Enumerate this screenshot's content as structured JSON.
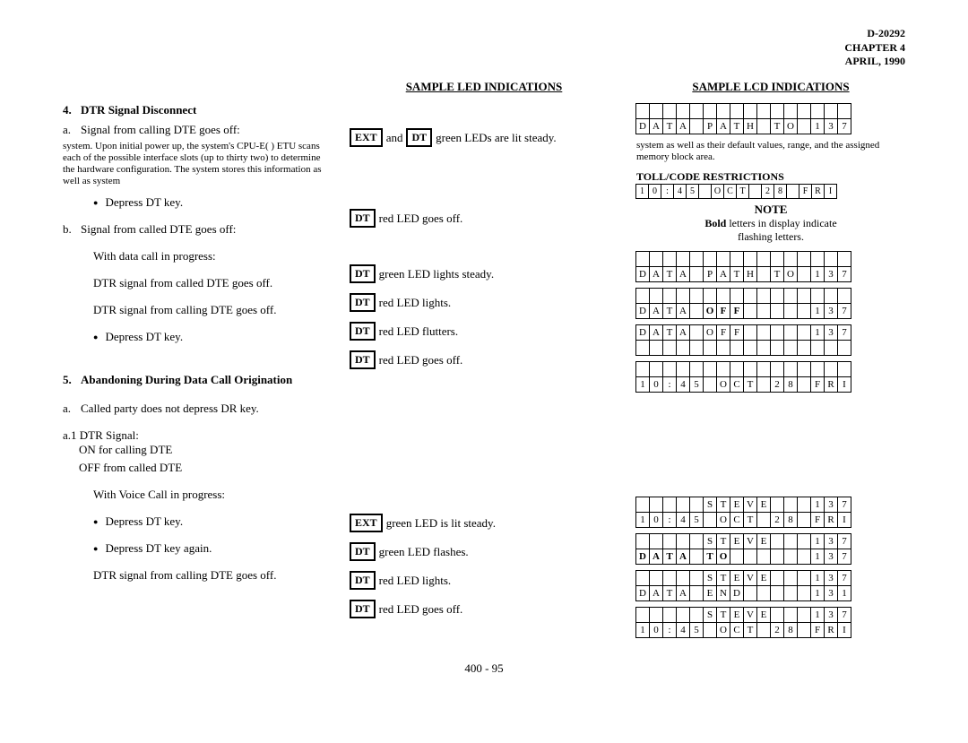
{
  "header": {
    "docnum": "D-20292",
    "chapter": "CHAPTER 4",
    "date": "APRIL, 1990"
  },
  "col_headings": {
    "led": "SAMPLE LED INDICATIONS",
    "lcd": "SAMPLE LCD INDICATIONS"
  },
  "sec4": {
    "num": "4.",
    "title": "DTR Signal Disconnect",
    "a": "Signal from calling DTE goes off:",
    "a_led_1": "EXT",
    "a_led_2": "and",
    "a_led_3": "DT",
    "a_led_4": "green LEDs are lit steady.",
    "garbled1": "system. Upon initial power up, the system's CPU-E( ) ETU scans each of the possible interface slots (up to thirty two) to determine the hardware configuration. The system stores this information as well as system",
    "bullet1": "Depress DT key.",
    "b1_box": "DT",
    "b1_text": "red LED goes off.",
    "b": "Signal from called DTE goes off:",
    "sub1": "With data call in progress:",
    "s1_box": "DT",
    "s1_text": "green LED lights steady.",
    "sub2": "DTR signal from called DTE goes off.",
    "s2_box": "DT",
    "s2_text": "red LED lights.",
    "sub3": "DTR signal from calling DTE goes off.",
    "s3_box": "DT",
    "s3_text": "red LED flutters.",
    "bullet2": "Depress DT key.",
    "b2_box": "DT",
    "b2_text": "red LED goes off."
  },
  "sec5": {
    "num": "5.",
    "title": "Abandoning During Data Call Origination",
    "a": "Called party does not depress DR key.",
    "a1": "a.1 DTR Signal:",
    "a1_l1": "ON for calling DTE",
    "a1_l2": "OFF from called DTE",
    "sub1": "With Voice Call in progress:",
    "s1_box": "EXT",
    "s1_text": "green LED is lit steady.",
    "bullet1": "Depress DT key.",
    "b1_box": "DT",
    "b1_text": "green LED flashes.",
    "bullet2": "Depress DT key again.",
    "b2_box": "DT",
    "b2_text": "red LED lights.",
    "sub2": "DTR signal from calling DTE goes off.",
    "s2_box": "DT",
    "s2_text": "red LED goes off."
  },
  "right": {
    "garbled1": "system as well as their default values, range, and the assigned memory block area.",
    "toll": "TOLL/CODE RESTRICTIONS",
    "note_head": "NOTE",
    "note_body1": "Bold letters in display indicate",
    "note_body2": "flashing letters."
  },
  "lcds": {
    "top": [
      [
        "",
        "",
        "",
        "",
        "",
        "",
        "",
        "",
        "",
        "",
        "",
        "",
        "",
        "",
        "",
        ""
      ],
      [
        "D",
        "A",
        "T",
        "A",
        "",
        "P",
        "A",
        "T",
        "H",
        "",
        "T",
        "O",
        "",
        "1",
        "3",
        "7"
      ]
    ],
    "toll_float": [
      "1",
      "0",
      ":",
      "4",
      "5",
      "",
      "O",
      "C",
      "T",
      "",
      "2",
      "8",
      "",
      "F",
      "R",
      "I"
    ],
    "n1": [
      [
        "",
        "",
        "",
        "",
        "",
        "",
        "",
        "",
        "",
        "",
        "",
        "",
        "",
        "",
        "",
        ""
      ],
      [
        "D",
        "A",
        "T",
        "A",
        "",
        "P",
        "A",
        "T",
        "H",
        "",
        "T",
        "O",
        "",
        "1",
        "3",
        "7"
      ]
    ],
    "n2": [
      [
        "",
        "",
        "",
        "",
        "",
        "",
        "",
        "",
        "",
        "",
        "",
        "",
        "",
        "",
        "",
        ""
      ],
      [
        "D",
        "A",
        "T",
        "A",
        "",
        "O",
        "F",
        "F",
        "",
        "",
        "",
        "",
        "",
        "1",
        "3",
        "7"
      ]
    ],
    "n2_bold": [
      false,
      false,
      false,
      false,
      false,
      true,
      true,
      true,
      false,
      false,
      false,
      false,
      false,
      false,
      false,
      false
    ],
    "n3": [
      [
        "D",
        "A",
        "T",
        "A",
        "",
        "O",
        "F",
        "F",
        "",
        "",
        "",
        "",
        "",
        "1",
        "3",
        "7"
      ],
      [
        "",
        "",
        "",
        "",
        "",
        "",
        "",
        "",
        "",
        "",
        "",
        "",
        "",
        "",
        "",
        ""
      ]
    ],
    "n4": [
      [
        "",
        "",
        "",
        "",
        "",
        "",
        "",
        "",
        "",
        "",
        "",
        "",
        "",
        "",
        "",
        ""
      ],
      [
        "1",
        "0",
        ":",
        "4",
        "5",
        "",
        "O",
        "C",
        "T",
        "",
        "2",
        "8",
        "",
        "F",
        "R",
        "I"
      ]
    ],
    "s1": [
      [
        "",
        "",
        "",
        "",
        "",
        "S",
        "T",
        "E",
        "V",
        "E",
        "",
        "",
        "",
        "1",
        "3",
        "7"
      ],
      [
        "1",
        "0",
        ":",
        "4",
        "5",
        "",
        "O",
        "C",
        "T",
        "",
        "2",
        "8",
        "",
        "F",
        "R",
        "I"
      ]
    ],
    "s2": [
      [
        "",
        "",
        "",
        "",
        "",
        "S",
        "T",
        "E",
        "V",
        "E",
        "",
        "",
        "",
        "1",
        "3",
        "7"
      ],
      [
        "D",
        "A",
        "T",
        "A",
        "",
        "T",
        "O",
        "",
        "",
        "",
        "",
        "",
        "",
        "1",
        "3",
        "7"
      ]
    ],
    "s2_bold_r2": [
      true,
      true,
      true,
      true,
      false,
      true,
      true,
      false,
      false,
      false,
      false,
      false,
      false,
      false,
      false,
      false
    ],
    "s3": [
      [
        "",
        "",
        "",
        "",
        "",
        "S",
        "T",
        "E",
        "V",
        "E",
        "",
        "",
        "",
        "1",
        "3",
        "7"
      ],
      [
        "D",
        "A",
        "T",
        "A",
        "",
        "E",
        "N",
        "D",
        "",
        "",
        "",
        "",
        "",
        "1",
        "3",
        "1"
      ]
    ],
    "s4": [
      [
        "",
        "",
        "",
        "",
        "",
        "S",
        "T",
        "E",
        "V",
        "E",
        "",
        "",
        "",
        "1",
        "3",
        "7"
      ],
      [
        "1",
        "0",
        ":",
        "4",
        "5",
        "",
        "O",
        "C",
        "T",
        "",
        "2",
        "8",
        "",
        "F",
        "R",
        "I"
      ]
    ]
  },
  "pagenum": "400 - 95"
}
